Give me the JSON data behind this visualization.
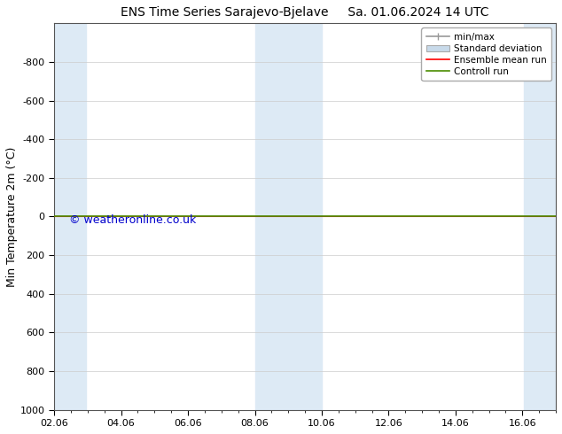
{
  "title_left": "ENS Time Series Sarajevo-Bjelave",
  "title_right": "Sa. 01.06.2024 14 UTC",
  "ylabel": "Min Temperature 2m (°C)",
  "ylim_top": -1000,
  "ylim_bottom": 1000,
  "yticks": [
    -800,
    -600,
    -400,
    -200,
    0,
    200,
    400,
    600,
    800,
    1000
  ],
  "xtick_labels": [
    "02.06",
    "04.06",
    "06.06",
    "08.06",
    "10.06",
    "12.06",
    "14.06",
    "16.06"
  ],
  "xtick_positions": [
    0,
    2,
    4,
    6,
    8,
    10,
    12,
    14
  ],
  "xlim": [
    0,
    15
  ],
  "bg_color": "#ffffff",
  "plot_bg_color": "#ffffff",
  "shaded_columns": [
    {
      "x_start": 0.0,
      "x_end": 0.95,
      "color": "#ddeaf5"
    },
    {
      "x_start": 6.0,
      "x_end": 8.0,
      "color": "#ddeaf5"
    },
    {
      "x_start": 14.05,
      "x_end": 15.0,
      "color": "#ddeaf5"
    }
  ],
  "horizontal_line_y": 0,
  "ensemble_mean_color": "#ff0000",
  "control_run_color": "#4a8c00",
  "minmax_color": "#999999",
  "std_dev_color": "#c8daea",
  "watermark": "© weatheronline.co.uk",
  "watermark_color": "#0000cc",
  "legend_items": [
    {
      "label": "min/max",
      "color": "#999999",
      "type": "errorbar"
    },
    {
      "label": "Standard deviation",
      "color": "#c8daea",
      "type": "box"
    },
    {
      "label": "Ensemble mean run",
      "color": "#ff0000",
      "type": "line"
    },
    {
      "label": "Controll run",
      "color": "#4a8c00",
      "type": "line"
    }
  ],
  "title_fontsize": 10,
  "ylabel_fontsize": 9,
  "tick_fontsize": 8,
  "legend_fontsize": 7.5
}
